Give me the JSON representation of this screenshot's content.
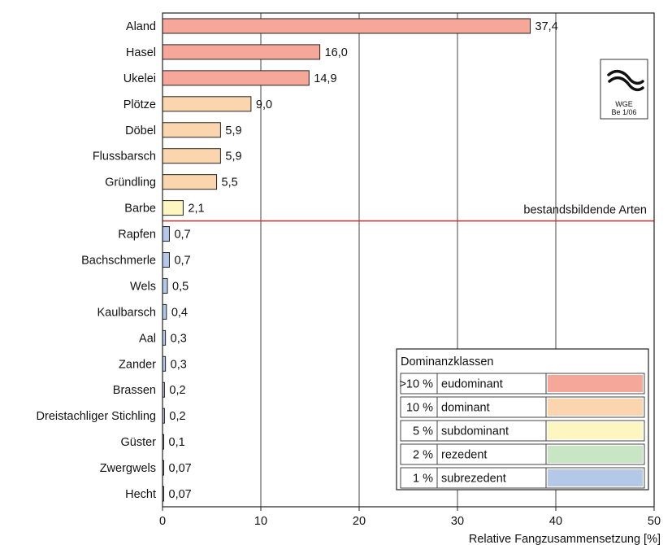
{
  "chart_data": {
    "type": "bar",
    "orientation": "horizontal",
    "categories": [
      "Aland",
      "Hasel",
      "Ukelei",
      "Plötze",
      "Döbel",
      "Flussbarsch",
      "Gründling",
      "Barbe",
      "Rapfen",
      "Bachschmerle",
      "Wels",
      "Kaulbarsch",
      "Aal",
      "Zander",
      "Brassen",
      "Dreistachliger Stichling",
      "Güster",
      "Zwergwels",
      "Hecht"
    ],
    "values": [
      37.4,
      16.0,
      14.9,
      9.0,
      5.9,
      5.9,
      5.5,
      2.1,
      0.7,
      0.7,
      0.5,
      0.4,
      0.3,
      0.3,
      0.2,
      0.2,
      0.1,
      0.07,
      0.07
    ],
    "value_labels": [
      "37,4",
      "16,0",
      "14,9",
      "9,0",
      "5,9",
      "5,9",
      "5,5",
      "2,1",
      "0,7",
      "0,7",
      "0,5",
      "0,4",
      "0,3",
      "0,3",
      "0,2",
      "0,2",
      "0,1",
      "0,07",
      "0,07"
    ],
    "classes": [
      "eudominant",
      "eudominant",
      "eudominant",
      "dominant",
      "dominant",
      "dominant",
      "dominant",
      "subdominant",
      "subrezedent",
      "subrezedent",
      "subrezedent",
      "subrezedent",
      "subrezedent",
      "subrezedent",
      "subrezedent",
      "subrezedent",
      "subrezedent",
      "subrezedent",
      "subrezedent"
    ],
    "xlabel": "Relative Fangzusammensetzung [%]",
    "xlim": [
      0,
      50
    ],
    "xticks": [
      0,
      10,
      20,
      30,
      40,
      50
    ],
    "grid": "vertical",
    "threshold": {
      "after_category": "Barbe",
      "label": "bestandsbildende Arten",
      "color": "#d03030"
    },
    "legend": {
      "title": "Dominanzklassen",
      "placement": "bottom-right",
      "items": [
        {
          "threshold": ">10 %",
          "name": "eudominant",
          "color": "#f5a89a"
        },
        {
          "threshold": "10 %",
          "name": "dominant",
          "color": "#fbd5ae"
        },
        {
          "threshold": "5 %",
          "name": "subdominant",
          "color": "#fdf6c0"
        },
        {
          "threshold": "2 %",
          "name": "rezedent",
          "color": "#c9e6c4"
        },
        {
          "threshold": "1 %",
          "name": "subrezedent",
          "color": "#b4c8e8"
        }
      ]
    },
    "logo": {
      "icon": "fish-logo-icon",
      "line1": "WGE",
      "line2": "Be 1/06"
    }
  }
}
